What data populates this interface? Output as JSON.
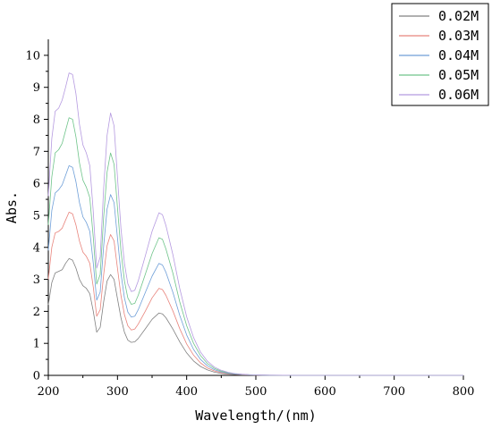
{
  "chart_data": {
    "type": "line",
    "xlabel": "Wavelength/(nm)",
    "ylabel": "Abs.",
    "xlim": [
      200,
      800
    ],
    "ylim": [
      0,
      10.5
    ],
    "xticks": [
      200,
      300,
      400,
      500,
      600,
      700,
      800
    ],
    "yticks": [
      0,
      1,
      2,
      3,
      4,
      5,
      6,
      7,
      8,
      9,
      10
    ],
    "grid": false,
    "legend_position": "top-right",
    "x": [
      200,
      205,
      210,
      215,
      220,
      225,
      230,
      235,
      240,
      245,
      250,
      255,
      260,
      265,
      270,
      275,
      280,
      285,
      290,
      295,
      300,
      305,
      310,
      315,
      320,
      325,
      330,
      340,
      350,
      360,
      365,
      370,
      380,
      390,
      400,
      410,
      420,
      430,
      440,
      450,
      460,
      470,
      480,
      490,
      500,
      510,
      520,
      540,
      560,
      600,
      700,
      800
    ],
    "series": [
      {
        "name": "0.02M",
        "color": "#808080",
        "values": [
          2.2,
          2.9,
          3.2,
          3.25,
          3.3,
          3.5,
          3.65,
          3.6,
          3.35,
          3.0,
          2.8,
          2.72,
          2.55,
          2.0,
          1.35,
          1.5,
          2.3,
          2.95,
          3.15,
          3.0,
          2.4,
          1.8,
          1.35,
          1.1,
          1.03,
          1.05,
          1.15,
          1.45,
          1.75,
          1.95,
          1.92,
          1.8,
          1.45,
          1.05,
          0.7,
          0.45,
          0.28,
          0.17,
          0.1,
          0.06,
          0.04,
          0.025,
          0.015,
          0.01,
          0.005,
          0.003,
          0.002,
          0.001,
          0.0,
          0.0,
          0.0,
          0.0
        ]
      },
      {
        "name": "0.03M",
        "color": "#e8847c",
        "values": [
          3.0,
          4.0,
          4.45,
          4.5,
          4.6,
          4.85,
          5.1,
          5.05,
          4.7,
          4.2,
          3.85,
          3.72,
          3.5,
          2.75,
          1.85,
          2.05,
          3.15,
          4.05,
          4.4,
          4.2,
          3.35,
          2.5,
          1.9,
          1.55,
          1.42,
          1.45,
          1.6,
          2.0,
          2.42,
          2.72,
          2.68,
          2.5,
          2.02,
          1.46,
          0.98,
          0.63,
          0.39,
          0.23,
          0.14,
          0.085,
          0.05,
          0.03,
          0.02,
          0.013,
          0.008,
          0.005,
          0.003,
          0.001,
          0.0,
          0.0,
          0.0,
          0.0
        ]
      },
      {
        "name": "0.04M",
        "color": "#6f9fd8",
        "values": [
          3.9,
          5.15,
          5.7,
          5.8,
          5.95,
          6.25,
          6.55,
          6.5,
          6.05,
          5.4,
          4.95,
          4.78,
          4.5,
          3.5,
          2.35,
          2.6,
          4.05,
          5.2,
          5.65,
          5.4,
          4.3,
          3.2,
          2.42,
          1.98,
          1.82,
          1.85,
          2.05,
          2.58,
          3.1,
          3.5,
          3.45,
          3.22,
          2.6,
          1.88,
          1.26,
          0.81,
          0.5,
          0.3,
          0.18,
          0.11,
          0.065,
          0.04,
          0.025,
          0.016,
          0.01,
          0.006,
          0.004,
          0.002,
          0.001,
          0.0,
          0.0,
          0.0
        ]
      },
      {
        "name": "0.05M",
        "color": "#6fc48a",
        "values": [
          4.7,
          6.2,
          6.95,
          7.05,
          7.25,
          7.65,
          8.05,
          8.0,
          7.45,
          6.65,
          6.1,
          5.88,
          5.55,
          4.3,
          2.85,
          3.15,
          4.95,
          6.35,
          6.95,
          6.6,
          5.25,
          3.9,
          2.95,
          2.42,
          2.22,
          2.25,
          2.5,
          3.15,
          3.8,
          4.3,
          4.25,
          3.95,
          3.2,
          2.3,
          1.55,
          1.0,
          0.62,
          0.37,
          0.22,
          0.13,
          0.08,
          0.05,
          0.03,
          0.02,
          0.012,
          0.007,
          0.005,
          0.002,
          0.001,
          0.0,
          0.0,
          0.0
        ]
      },
      {
        "name": "0.06M",
        "color": "#b59ae0",
        "values": [
          5.6,
          7.4,
          8.25,
          8.35,
          8.6,
          9.0,
          9.45,
          9.4,
          8.8,
          7.85,
          7.2,
          6.95,
          6.55,
          5.1,
          3.35,
          3.7,
          5.85,
          7.5,
          8.2,
          7.8,
          6.2,
          4.6,
          3.5,
          2.86,
          2.62,
          2.66,
          2.95,
          3.72,
          4.5,
          5.08,
          5.02,
          4.68,
          3.78,
          2.72,
          1.83,
          1.18,
          0.73,
          0.44,
          0.26,
          0.16,
          0.095,
          0.057,
          0.035,
          0.022,
          0.014,
          0.009,
          0.006,
          0.003,
          0.001,
          0.0,
          0.0,
          0.0
        ]
      }
    ]
  }
}
